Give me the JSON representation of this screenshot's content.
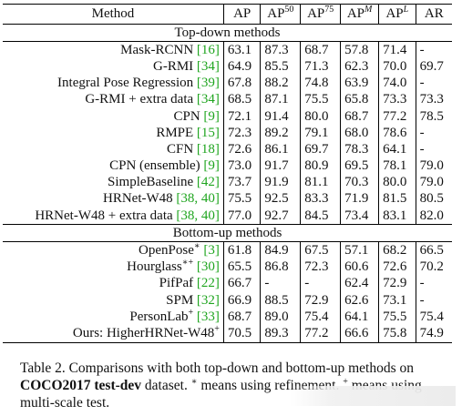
{
  "table": {
    "headers": {
      "method": "Method",
      "ap": "AP",
      "ap50": "AP",
      "ap50_sup": "50",
      "ap75": "AP",
      "ap75_sup": "75",
      "apm": "AP",
      "apm_sup": "M",
      "apl": "AP",
      "apl_sup": "L",
      "ar": "AR"
    },
    "sections": [
      {
        "title": "Top-down methods",
        "rows": [
          {
            "name": "Mask-RCNN ",
            "cite": "[16]",
            "sup": "",
            "ap": "63.1",
            "ap50": "87.3",
            "ap75": "68.7",
            "apm": "57.8",
            "apl": "71.4",
            "ar": "-"
          },
          {
            "name": "G-RMI ",
            "cite": "[34]",
            "sup": "",
            "ap": "64.9",
            "ap50": "85.5",
            "ap75": "71.3",
            "apm": "62.3",
            "apl": "70.0",
            "ar": "69.7"
          },
          {
            "name": "Integral Pose Regression ",
            "cite": "[39]",
            "sup": "",
            "ap": "67.8",
            "ap50": "88.2",
            "ap75": "74.8",
            "apm": "63.9",
            "apl": "74.0",
            "ar": "-"
          },
          {
            "name": "G-RMI + extra data ",
            "cite": "[34]",
            "sup": "",
            "ap": "68.5",
            "ap50": "87.1",
            "ap75": "75.5",
            "apm": "65.8",
            "apl": "73.3",
            "ar": "73.3"
          },
          {
            "name": "CPN ",
            "cite": "[9]",
            "sup": "",
            "ap": "72.1",
            "ap50": "91.4",
            "ap75": "80.0",
            "apm": "68.7",
            "apl": "77.2",
            "ar": "78.5"
          },
          {
            "name": "RMPE ",
            "cite": "[15]",
            "sup": "",
            "ap": "72.3",
            "ap50": "89.2",
            "ap75": "79.1",
            "apm": "68.0",
            "apl": "78.6",
            "ar": "-"
          },
          {
            "name": "CFN ",
            "cite": "[18]",
            "sup": "",
            "ap": "72.6",
            "ap50": "86.1",
            "ap75": "69.7",
            "apm": "78.3",
            "apl": "64.1",
            "ar": "-"
          },
          {
            "name": "CPN (ensemble) ",
            "cite": "[9]",
            "sup": "",
            "ap": "73.0",
            "ap50": "91.7",
            "ap75": "80.9",
            "apm": "69.5",
            "apl": "78.1",
            "ar": "79.0"
          },
          {
            "name": "SimpleBaseline ",
            "cite": "[42]",
            "sup": "",
            "ap": "73.7",
            "ap50": "91.9",
            "ap75": "81.1",
            "apm": "70.3",
            "apl": "80.0",
            "ar": "79.0"
          },
          {
            "name": "HRNet-W48 ",
            "cite": "[38, 40]",
            "sup": "",
            "ap": "75.5",
            "ap50": "92.5",
            "ap75": "83.3",
            "apm": "71.9",
            "apl": "81.5",
            "ar": "80.5"
          },
          {
            "name": "HRNet-W48 + extra data ",
            "cite": "[38, 40]",
            "sup": "",
            "ap": "77.0",
            "ap50": "92.7",
            "ap75": "84.5",
            "apm": "73.4",
            "apl": "83.1",
            "ar": "82.0"
          }
        ]
      },
      {
        "title": "Bottom-up methods",
        "rows": [
          {
            "name": "OpenPose",
            "sup": "∗",
            "cite": " [3]",
            "ap": "61.8",
            "ap50": "84.9",
            "ap75": "67.5",
            "apm": "57.1",
            "apl": "68.2",
            "ar": "66.5"
          },
          {
            "name": "Hourglass",
            "sup": "∗+",
            "cite": " [30]",
            "ap": "65.5",
            "ap50": "86.8",
            "ap75": "72.3",
            "apm": "60.6",
            "apl": "72.6",
            "ar": "70.2"
          },
          {
            "name": "PifPaf ",
            "sup": "",
            "cite": "[22]",
            "ap": "66.7",
            "ap50": "-",
            "ap75": "-",
            "apm": "62.4",
            "apl": "72.9",
            "ar": "-"
          },
          {
            "name": "SPM ",
            "sup": "",
            "cite": "[32]",
            "ap": "66.9",
            "ap50": "88.5",
            "ap75": "72.9",
            "apm": "62.6",
            "apl": "73.1",
            "ar": "-"
          },
          {
            "name": "PersonLab",
            "sup": "+",
            "cite": " [33]",
            "ap": "68.7",
            "ap50": "89.0",
            "ap75": "75.4",
            "apm": "64.1",
            "apl": "75.5",
            "ar": "75.4"
          },
          {
            "name": "Ours: HigherHRNet-W48",
            "sup": "+",
            "cite": "",
            "ap": "70.5",
            "ap50": "89.3",
            "ap75": "77.2",
            "apm": "66.6",
            "apl": "75.8",
            "ar": "74.9"
          }
        ]
      }
    ]
  },
  "caption": {
    "part1": "Table 2. Comparisons with both top-down and bottom-up methods on ",
    "bold": "COCO2017 test-dev",
    "part2": " dataset. ",
    "sup1": "∗",
    "part3": " means using refinement. ",
    "sup2": "+",
    "part4": " means using multi-scale test."
  },
  "colors": {
    "citation": "#1fa51f",
    "text": "#111111",
    "background": "#ffffff"
  }
}
